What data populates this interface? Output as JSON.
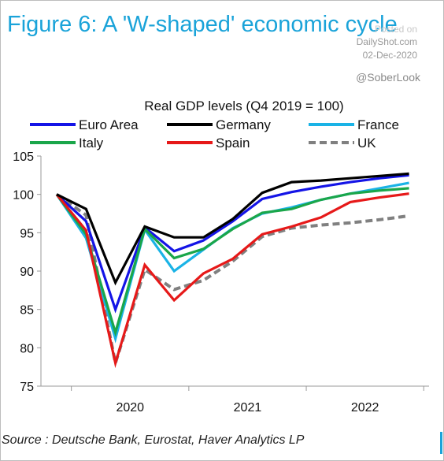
{
  "header": {
    "title": "Figure 6: A 'W-shaped' economic cycle",
    "watermark_line1": "Posted on",
    "watermark_line2": "DailyShot.com",
    "watermark_line3": "02-Dec-2020",
    "handle": "@SoberLook"
  },
  "footer": {
    "source": "Source : Deutsche Bank, Eurostat, Haver Analytics LP"
  },
  "chart_data": {
    "type": "line",
    "title": "Real GDP levels (Q4 2019 = 100)",
    "xlabel": "",
    "ylabel": "",
    "ylim": [
      75,
      105
    ],
    "yticks": [
      75,
      80,
      85,
      90,
      95,
      100,
      105
    ],
    "xtick_labels": [
      "2020",
      "2021",
      "2022"
    ],
    "x": [
      "Q4 2019",
      "Q1 2020",
      "Q2 2020",
      "Q3 2020",
      "Q4 2020",
      "Q1 2021",
      "Q2 2021",
      "Q3 2021",
      "Q4 2021",
      "Q1 2022",
      "Q2 2022",
      "Q3 2022",
      "Q4 2022"
    ],
    "grid": false,
    "legend_position": "top",
    "series": [
      {
        "name": "Euro Area",
        "color": "#1414e6",
        "dash": false,
        "values": [
          100,
          96.5,
          85.0,
          95.7,
          92.6,
          94.0,
          96.5,
          99.4,
          100.3,
          101.0,
          101.6,
          102.1,
          102.5
        ]
      },
      {
        "name": "Germany",
        "color": "#000000",
        "dash": false,
        "values": [
          100,
          98.1,
          88.5,
          95.8,
          94.4,
          94.4,
          96.8,
          100.2,
          101.6,
          101.8,
          102.1,
          102.4,
          102.7
        ]
      },
      {
        "name": "France",
        "color": "#1ab3e6",
        "dash": false,
        "values": [
          100,
          94.3,
          81.2,
          95.4,
          90.0,
          92.8,
          95.6,
          97.5,
          98.3,
          99.3,
          100.1,
          100.8,
          101.5
        ]
      },
      {
        "name": "Italy",
        "color": "#1aa64a",
        "dash": false,
        "values": [
          100,
          94.8,
          82.0,
          95.5,
          91.7,
          92.9,
          95.5,
          97.6,
          98.1,
          99.3,
          100.1,
          100.5,
          100.8
        ]
      },
      {
        "name": "Spain",
        "color": "#e61919",
        "dash": false,
        "values": [
          100,
          95.3,
          78.0,
          90.8,
          86.2,
          89.7,
          91.6,
          94.8,
          95.8,
          97.0,
          99.0,
          99.6,
          100.1
        ]
      },
      {
        "name": "UK",
        "color": "#808080",
        "dash": true,
        "values": [
          100,
          97.3,
          78.0,
          90.2,
          87.6,
          88.8,
          91.3,
          94.5,
          95.6,
          96.0,
          96.3,
          96.7,
          97.2
        ]
      }
    ]
  }
}
